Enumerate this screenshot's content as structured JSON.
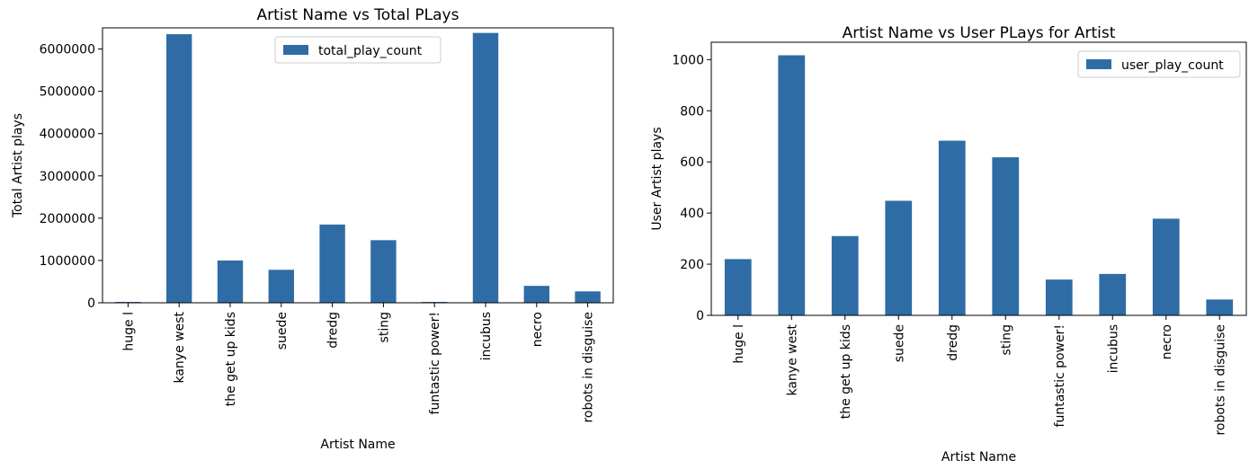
{
  "chart_data": [
    {
      "type": "bar",
      "title": "Artist Name vs Total PLays",
      "xlabel": "Artist Name",
      "ylabel": "Total Artist plays",
      "categories": [
        "huge l",
        "kanye west",
        "the get up kids",
        "suede",
        "dredg",
        "sting",
        "funtastic power!",
        "incubus",
        "necro",
        "robots in disguise"
      ],
      "series": [
        {
          "name": "total_play_count",
          "values": [
            20000,
            6350000,
            1000000,
            780000,
            1850000,
            1480000,
            20000,
            6380000,
            400000,
            270000
          ]
        }
      ],
      "ylim": [
        0,
        6500000
      ],
      "yticks": [
        0,
        1000000,
        2000000,
        3000000,
        4000000,
        5000000,
        6000000
      ],
      "ytick_labels": [
        "0",
        "1000000",
        "2000000",
        "3000000",
        "4000000",
        "5000000",
        "6000000"
      ],
      "legend_position": "top-center",
      "grid": false,
      "bar_color": "#2f6ca5"
    },
    {
      "type": "bar",
      "title": "Artist Name vs User PLays for Artist",
      "xlabel": "Artist Name",
      "ylabel": "User Artist plays",
      "categories": [
        "huge l",
        "kanye west",
        "the get up kids",
        "suede",
        "dredg",
        "sting",
        "funtastic power!",
        "incubus",
        "necro",
        "robots in disguise"
      ],
      "series": [
        {
          "name": "user_play_count",
          "values": [
            220,
            1017,
            310,
            448,
            683,
            618,
            140,
            162,
            378,
            62
          ]
        }
      ],
      "ylim": [
        0,
        1068
      ],
      "yticks": [
        0,
        200,
        400,
        600,
        800,
        1000
      ],
      "ytick_labels": [
        "0",
        "200",
        "400",
        "600",
        "800",
        "1000"
      ],
      "legend_position": "top-right",
      "grid": false,
      "bar_color": "#2f6ca5"
    }
  ]
}
